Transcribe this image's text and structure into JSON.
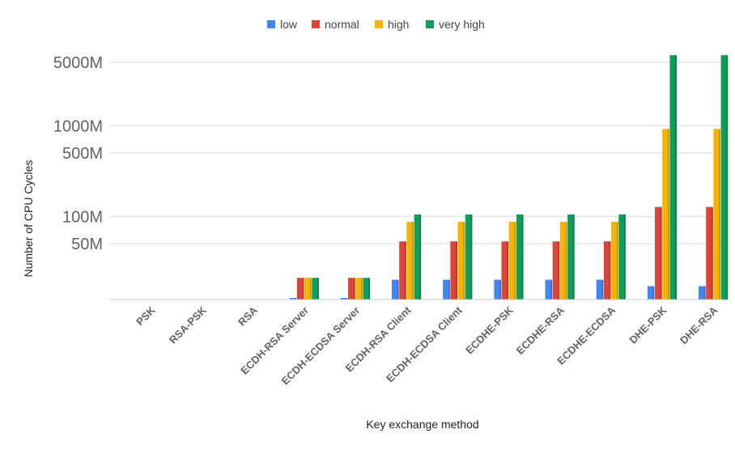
{
  "chart_data": {
    "type": "bar",
    "title": "",
    "xlabel": "Key exchange method",
    "ylabel": "Number of CPU Cycles",
    "y_scale": "log",
    "ylim": [
      9,
      8000
    ],
    "y_ticks": [
      {
        "value": 50,
        "label": "50M"
      },
      {
        "value": 100,
        "label": "100M"
      },
      {
        "value": 500,
        "label": "500M"
      },
      {
        "value": 1000,
        "label": "1000M"
      },
      {
        "value": 5000,
        "label": "5000M"
      }
    ],
    "grid": true,
    "legend_position": "top",
    "categories": [
      "PSK",
      "RSA-PSK",
      "RSA",
      "ECDH-RSA Server",
      "ECDH-ECDSA Server",
      "ECDH-RSA Client",
      "ECDH-ECDSA Client",
      "ECDHE-PSK",
      "ECDHE-RSA",
      "ECDHE-ECDSA",
      "DHE-PSK",
      "DHE-RSA"
    ],
    "series": [
      {
        "name": "low",
        "color": "#4285f4",
        "values": [
          null,
          null,
          null,
          9.5,
          9.5,
          20,
          20,
          20,
          20,
          20,
          17,
          17
        ]
      },
      {
        "name": "normal",
        "color": "#db4437",
        "values": [
          null,
          null,
          null,
          21,
          21,
          53,
          53,
          53,
          53,
          53,
          127,
          127
        ]
      },
      {
        "name": "high",
        "color": "#f4b400",
        "values": [
          null,
          null,
          null,
          21,
          21,
          87,
          87,
          87,
          87,
          87,
          920,
          920
        ]
      },
      {
        "name": "very high",
        "color": "#0f9d58",
        "values": [
          null,
          null,
          null,
          21,
          21,
          105,
          105,
          105,
          105,
          105,
          6000,
          6000
        ]
      }
    ]
  }
}
